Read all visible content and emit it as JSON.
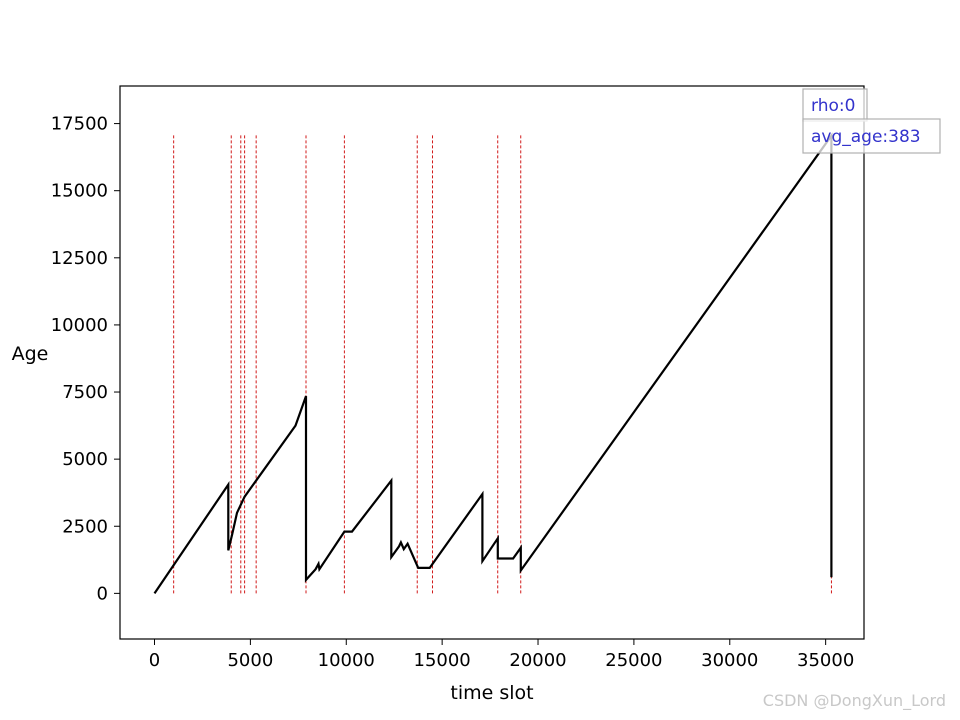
{
  "chart_data": {
    "type": "line",
    "title": "",
    "xlabel": "time slot",
    "ylabel": "Age",
    "xlim": [
      -1800,
      37000
    ],
    "ylim": [
      -1700,
      18900
    ],
    "xticks": [
      0,
      5000,
      10000,
      15000,
      20000,
      25000,
      30000,
      35000
    ],
    "yticks": [
      0,
      2500,
      5000,
      7500,
      10000,
      12500,
      15000,
      17500
    ],
    "grid": false,
    "legend": "none",
    "series": [
      {
        "name": "",
        "color": "#000000",
        "x": [
          0,
          3850,
          3850,
          4050,
          4300,
          4700,
          7350,
          7900,
          7900,
          8400,
          8550,
          8600,
          9900,
          10300,
          12350,
          12350,
          12750,
          12850,
          13000,
          13200,
          13750,
          14350,
          17100,
          17100,
          17900,
          17900,
          18700,
          19100,
          19100,
          35300,
          35300
        ],
        "y": [
          0,
          4050,
          1600,
          2200,
          3000,
          3600,
          6250,
          7350,
          500,
          900,
          1100,
          900,
          2300,
          2300,
          4200,
          1350,
          1750,
          1900,
          1650,
          1850,
          950,
          950,
          3700,
          1200,
          2050,
          1300,
          1300,
          1700,
          850,
          17050,
          600
        ]
      }
    ],
    "event_lines": {
      "color": "#cc0000",
      "style": "dashed",
      "x": [
        1000,
        4000,
        4500,
        4700,
        5300,
        7900,
        9900,
        13700,
        14500,
        17900,
        19100,
        35300
      ],
      "y_range": [
        0,
        17100
      ]
    },
    "annotations": [
      {
        "text": "rho:0",
        "color": "#3333cc"
      },
      {
        "text": "avg_age:383",
        "color": "#3333cc"
      }
    ]
  },
  "watermark": "CSDN @DongXun_Lord"
}
